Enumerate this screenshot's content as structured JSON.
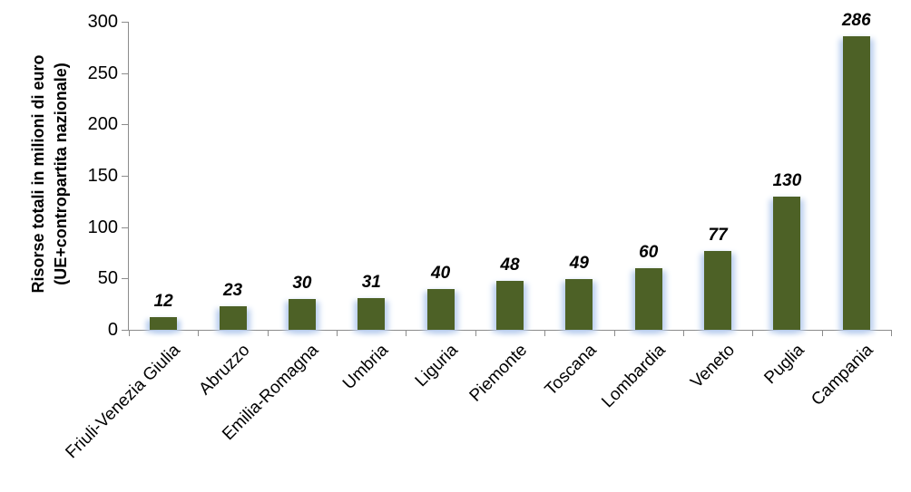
{
  "chart_data": {
    "type": "bar",
    "title": "",
    "categories": [
      "Friuli-Venezia Giulia",
      "Abruzzo",
      "Emilia-Romagna",
      "Umbria",
      "Liguria",
      "Piemonte",
      "Toscana",
      "Lombardia",
      "Veneto",
      "Puglia",
      "Campania"
    ],
    "values": [
      12,
      23,
      30,
      31,
      40,
      48,
      49,
      60,
      77,
      130,
      286
    ],
    "data_labels_visible": true,
    "ylabel_line1": "Risorse totali in milioni di euro",
    "ylabel_line2": "(UE+contropartita nazionale)",
    "xlabel": "",
    "ylim": [
      0,
      300
    ],
    "yticks": [
      0,
      50,
      100,
      150,
      200,
      250,
      300
    ],
    "grid": false,
    "legend": "none",
    "colors": {
      "bar": "#4D6126",
      "bar_glow": "#BBCFEE",
      "axis": "#8C8C8C",
      "text": "#000000",
      "background": "#FFFFFF"
    }
  }
}
